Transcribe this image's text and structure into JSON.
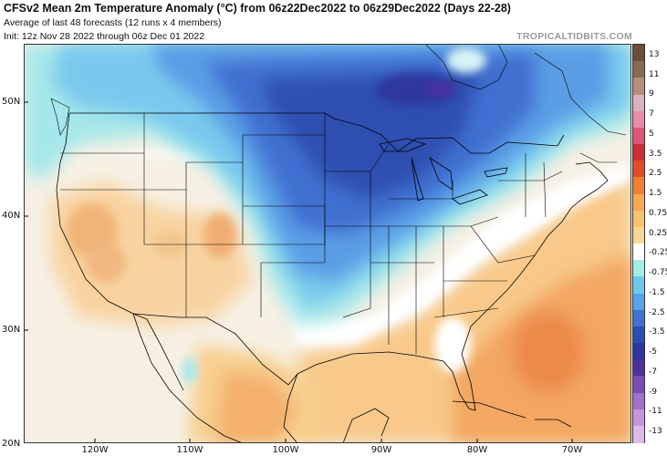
{
  "header": {
    "title": "CFSv2 Mean 2m Temperature Anomaly (°C) from 06z22Dec2022 to 06z29Dec2022 (Days 22-28)",
    "subtitle1": "Average of last 48 forecasts (12 runs x 4 members)",
    "subtitle2": "Init: 12z Nov 28 2022 through 06z Dec 01 2022",
    "brand": "TROPICALTIDBITS.COM"
  },
  "map": {
    "lat_labels": [
      "50N",
      "40N",
      "30N",
      "20N"
    ],
    "lon_labels": [
      "120W",
      "110W",
      "100W",
      "90W",
      "80W",
      "70W"
    ]
  },
  "colorbar": {
    "labels": [
      "13",
      "11",
      "9",
      "7",
      "5",
      "3.5",
      "2.5",
      "1.5",
      "0.75",
      "0.25",
      "-0.25",
      "-0.75",
      "-1.5",
      "-2.5",
      "-3.5",
      "-5",
      "-7",
      "-9",
      "-11",
      "-13"
    ],
    "colors": [
      "#6b4d3a",
      "#8a6a55",
      "#b68f7e",
      "#d9b3bd",
      "#e98ca6",
      "#e2557a",
      "#cf2d36",
      "#e34a25",
      "#f07f32",
      "#f7a852",
      "#f8c36d",
      "#f8d896",
      "#ffffff",
      "#a2ede6",
      "#6ec8ee",
      "#5aa3e8",
      "#3f72d2",
      "#2a4fb3",
      "#2c369e",
      "#4f2f9c",
      "#7a4bb5",
      "#a070cc",
      "#c596dd",
      "#ddbbe9"
    ]
  }
}
